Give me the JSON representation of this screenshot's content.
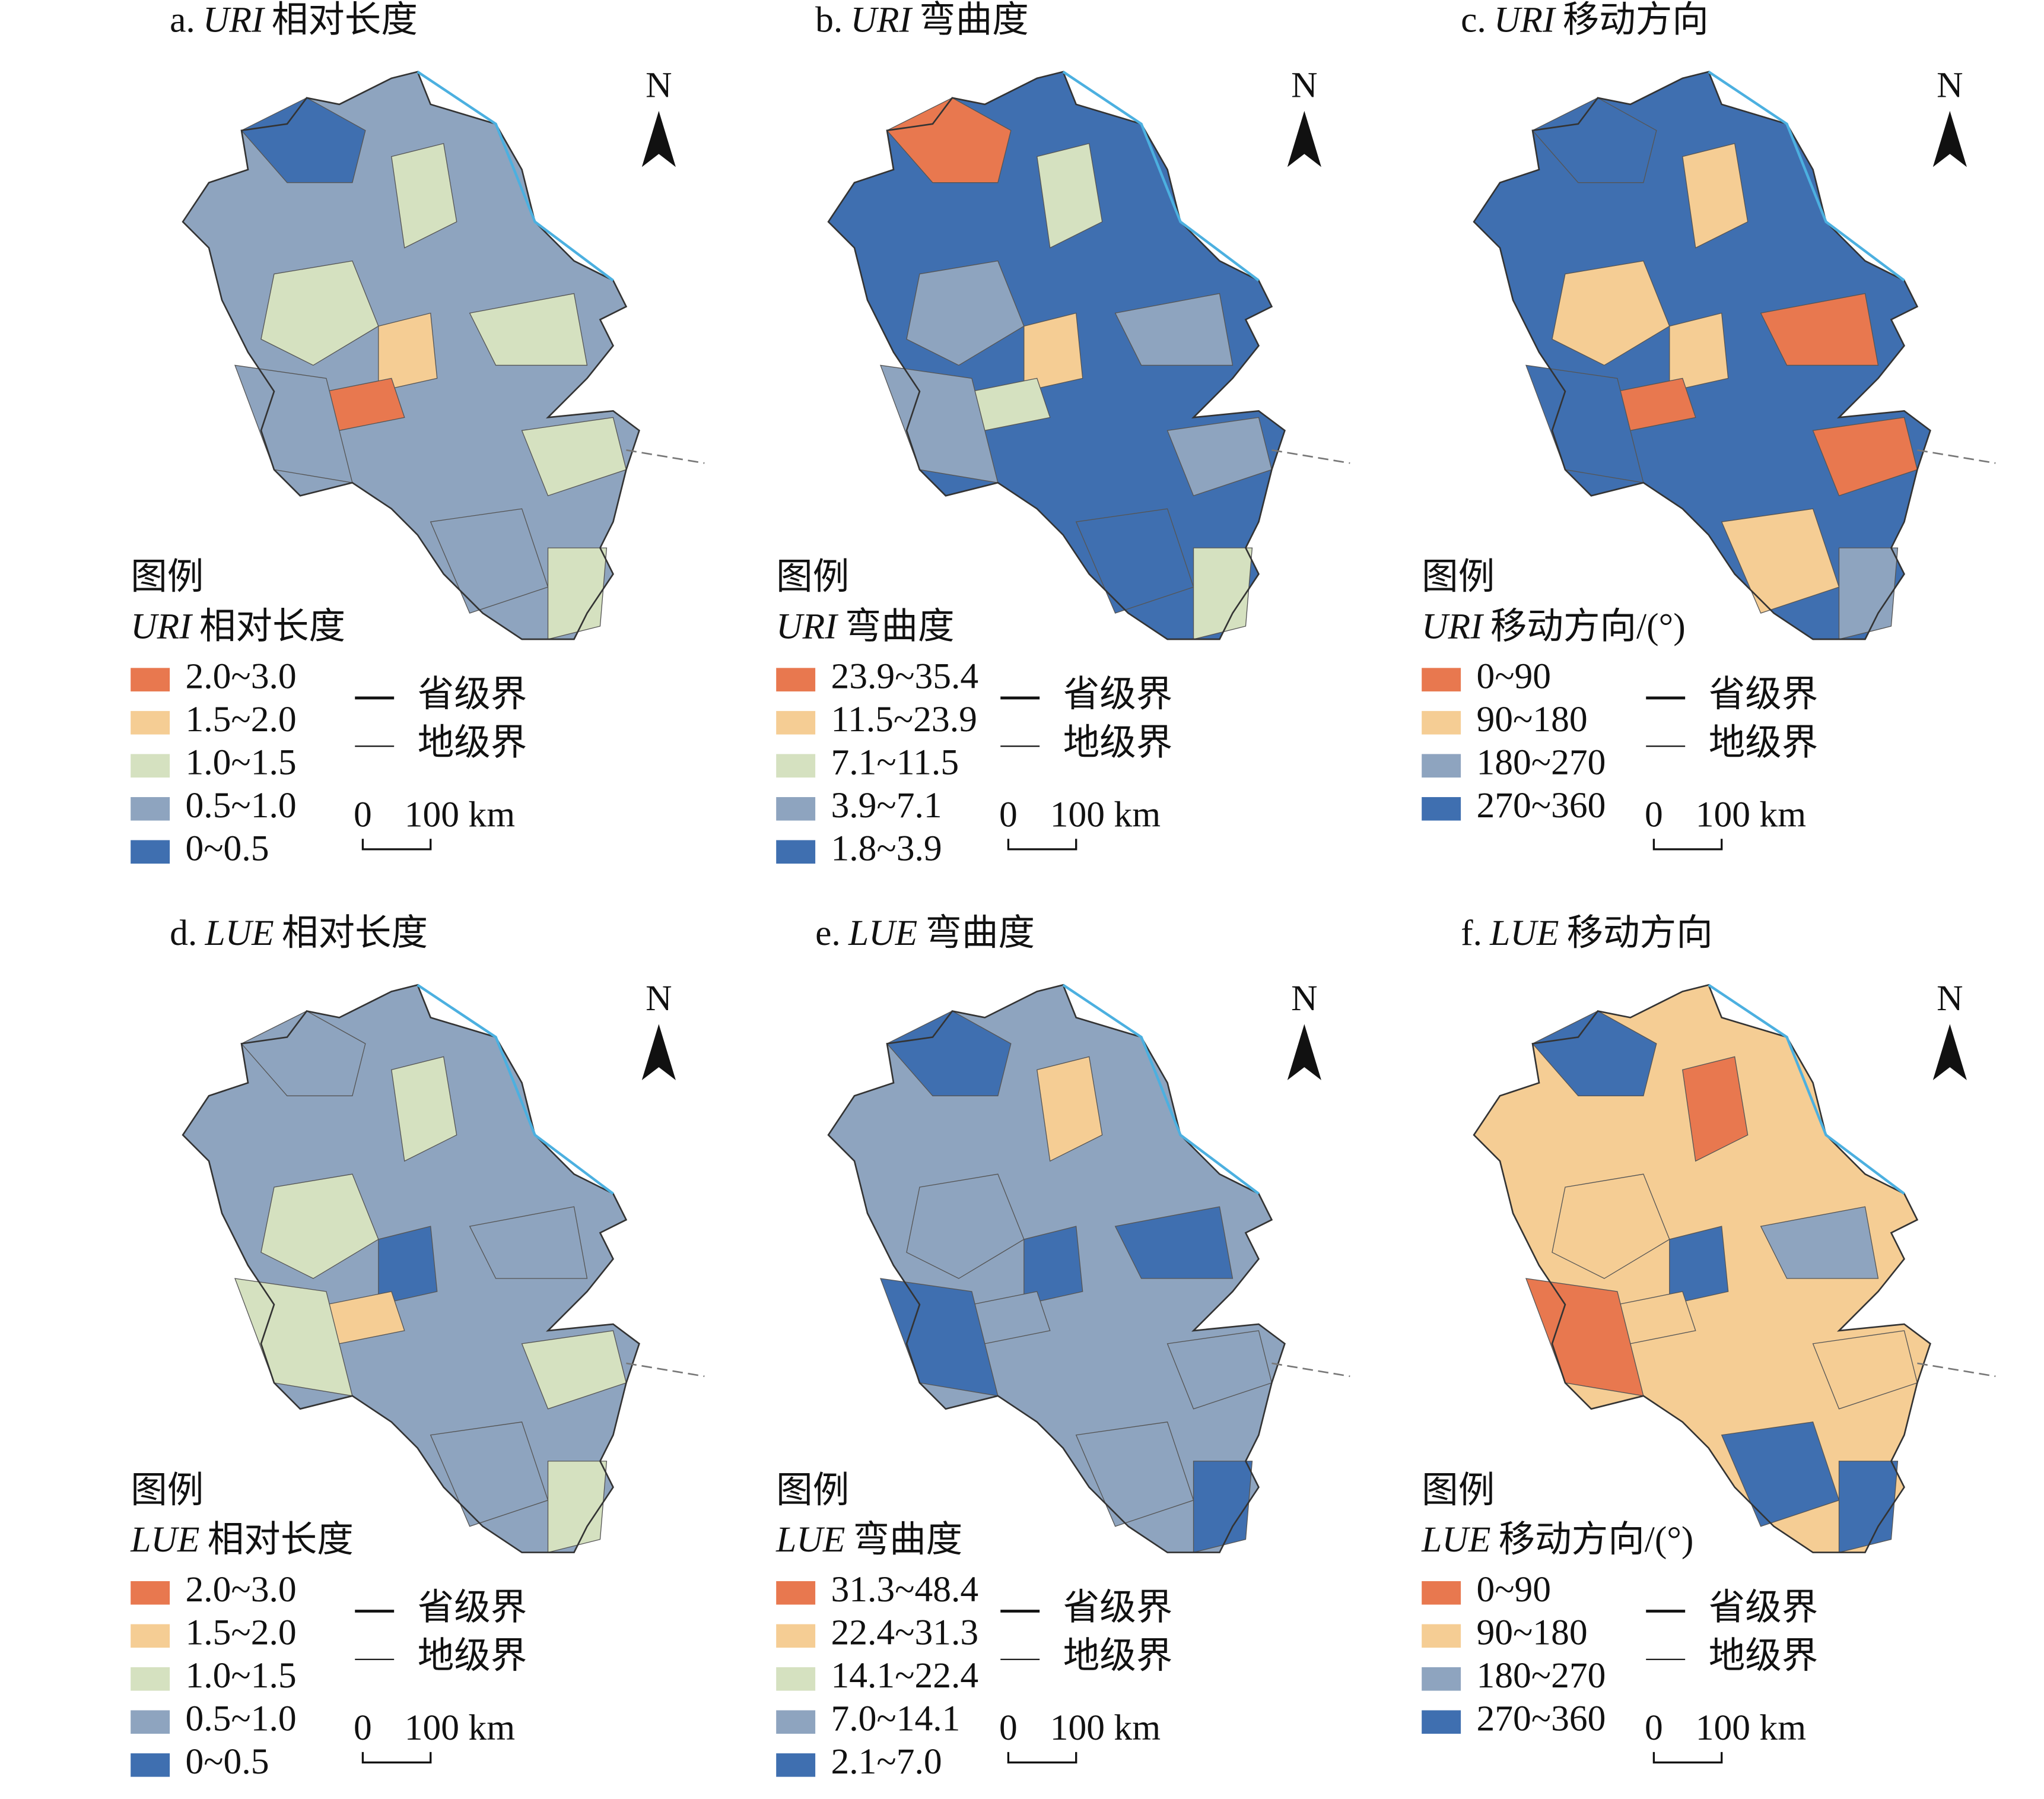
{
  "panels": [
    {
      "title": {
        "label": "a.",
        "abbr": "URI",
        "name": "相对长度"
      },
      "north": "N",
      "legend": {
        "heading": "图例",
        "title": {
          "abbr": "URI",
          "name": "相对长度"
        },
        "classes": [
          {
            "label": "2.0~3.0",
            "color": "#e8784f"
          },
          {
            "label": "1.5~2.0",
            "color": "#f5cd94"
          },
          {
            "label": "1.0~1.5",
            "color": "#d5e1c0"
          },
          {
            "label": "0.5~1.0",
            "color": "#8ea4bf"
          },
          {
            "label": "0~0.5",
            "color": "#3f6fb0"
          }
        ]
      },
      "boundaries": [
        "省级界",
        "地级界"
      ],
      "scale": {
        "start": "0",
        "end": "100 km"
      }
    },
    {
      "title": {
        "label": "b.",
        "abbr": "URI",
        "name": "弯曲度"
      },
      "north": "N",
      "legend": {
        "heading": "图例",
        "title": {
          "abbr": "URI",
          "name": "弯曲度"
        },
        "classes": [
          {
            "label": "23.9~35.4",
            "color": "#e8784f"
          },
          {
            "label": "11.5~23.9",
            "color": "#f5cd94"
          },
          {
            "label": "7.1~11.5",
            "color": "#d5e1c0"
          },
          {
            "label": "3.9~7.1",
            "color": "#8ea4bf"
          },
          {
            "label": "1.8~3.9",
            "color": "#3f6fb0"
          }
        ]
      },
      "boundaries": [
        "省级界",
        "地级界"
      ],
      "scale": {
        "start": "0",
        "end": "100 km"
      }
    },
    {
      "title": {
        "label": "c.",
        "abbr": "URI",
        "name": "移动方向"
      },
      "north": "N",
      "legend": {
        "heading": "图例",
        "title": {
          "abbr": "URI",
          "name": "移动方向/(°)"
        },
        "classes": [
          {
            "label": "0~90",
            "color": "#e8784f"
          },
          {
            "label": "90~180",
            "color": "#f5cd94"
          },
          {
            "label": "180~270",
            "color": "#8ea4bf"
          },
          {
            "label": "270~360",
            "color": "#3f6fb0"
          }
        ]
      },
      "boundaries": [
        "省级界",
        "地级界"
      ],
      "scale": {
        "start": "0",
        "end": "100 km"
      }
    },
    {
      "title": {
        "label": "d.",
        "abbr": "LUE",
        "name": "相对长度"
      },
      "north": "N",
      "legend": {
        "heading": "图例",
        "title": {
          "abbr": "LUE",
          "name": "相对长度"
        },
        "classes": [
          {
            "label": "2.0~3.0",
            "color": "#e8784f"
          },
          {
            "label": "1.5~2.0",
            "color": "#f5cd94"
          },
          {
            "label": "1.0~1.5",
            "color": "#d5e1c0"
          },
          {
            "label": "0.5~1.0",
            "color": "#8ea4bf"
          },
          {
            "label": "0~0.5",
            "color": "#3f6fb0"
          }
        ]
      },
      "boundaries": [
        "省级界",
        "地级界"
      ],
      "scale": {
        "start": "0",
        "end": "100 km"
      }
    },
    {
      "title": {
        "label": "e.",
        "abbr": "LUE",
        "name": "弯曲度"
      },
      "north": "N",
      "legend": {
        "heading": "图例",
        "title": {
          "abbr": "LUE",
          "name": "弯曲度"
        },
        "classes": [
          {
            "label": "31.3~48.4",
            "color": "#e8784f"
          },
          {
            "label": "22.4~31.3",
            "color": "#f5cd94"
          },
          {
            "label": "14.1~22.4",
            "color": "#d5e1c0"
          },
          {
            "label": "7.0~14.1",
            "color": "#8ea4bf"
          },
          {
            "label": "2.1~7.0",
            "color": "#3f6fb0"
          }
        ]
      },
      "boundaries": [
        "省级界",
        "地级界"
      ],
      "scale": {
        "start": "0",
        "end": "100 km"
      }
    },
    {
      "title": {
        "label": "f.",
        "abbr": "LUE",
        "name": "移动方向"
      },
      "north": "N",
      "legend": {
        "heading": "图例",
        "title": {
          "abbr": "LUE",
          "name": "移动方向/(°)"
        },
        "classes": [
          {
            "label": "0~90",
            "color": "#e8784f"
          },
          {
            "label": "90~180",
            "color": "#f5cd94"
          },
          {
            "label": "180~270",
            "color": "#8ea4bf"
          },
          {
            "label": "270~360",
            "color": "#3f6fb0"
          }
        ]
      },
      "boundaries": [
        "省级界",
        "地级界"
      ],
      "scale": {
        "start": "0",
        "end": "100 km"
      }
    }
  ]
}
